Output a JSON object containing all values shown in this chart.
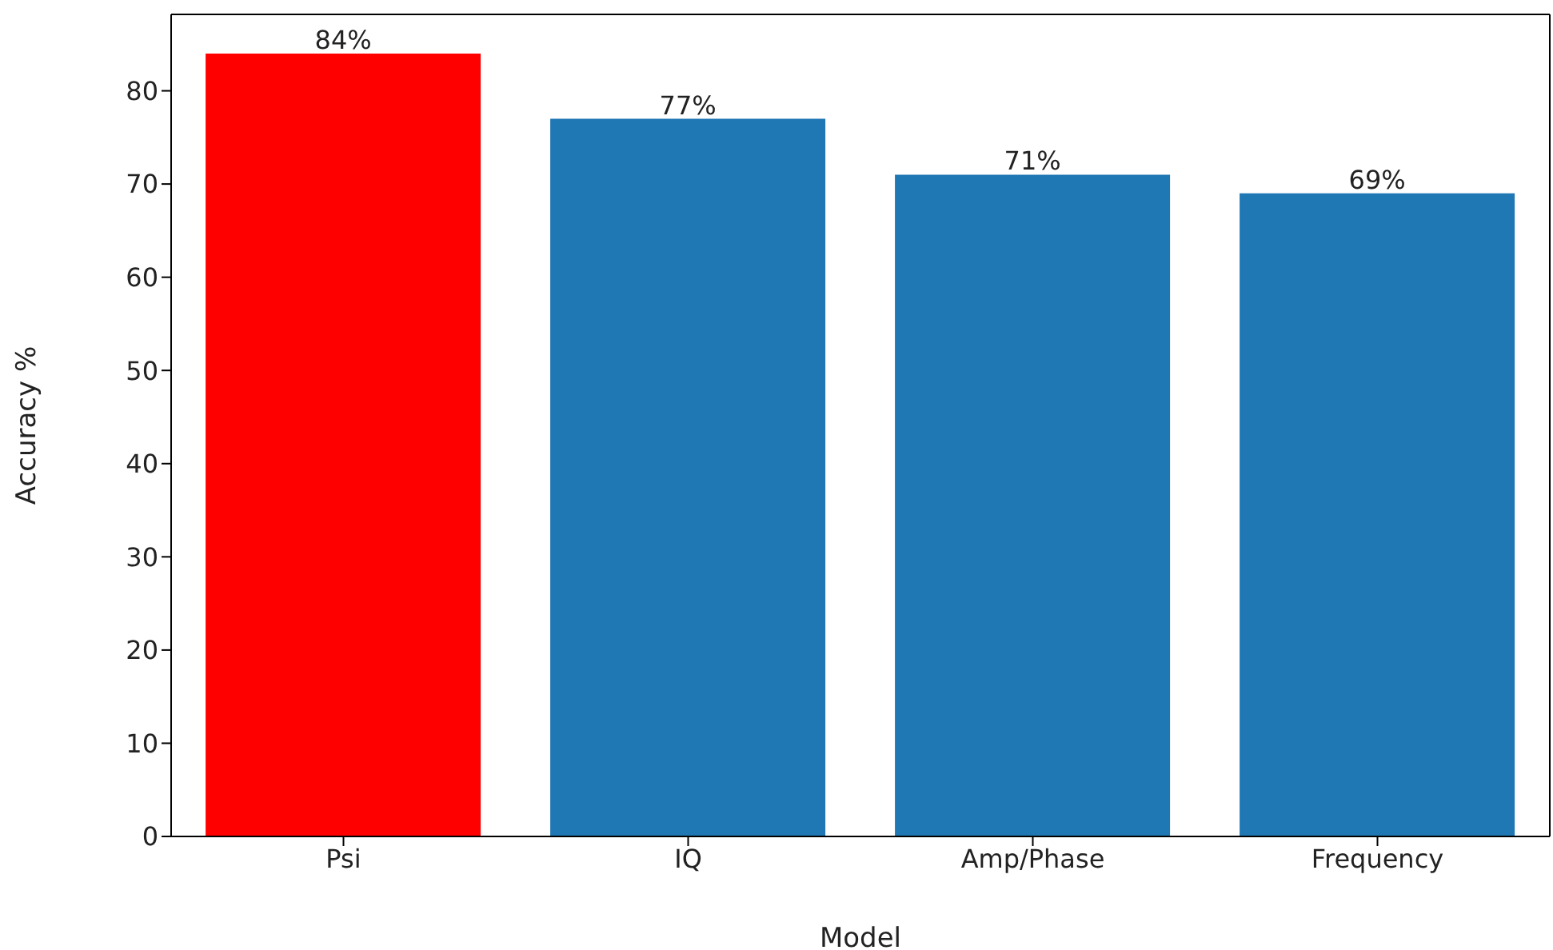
{
  "chart_data": {
    "type": "bar",
    "xlabel": "Model",
    "ylabel": "Accuracy %",
    "categories": [
      "Psi",
      "IQ",
      "Amp/Phase",
      "Frequency"
    ],
    "values": [
      84,
      77,
      71,
      69
    ],
    "colors": [
      "#ff0000",
      "#1f77b4",
      "#1f77b4",
      "#1f77b4"
    ],
    "value_labels": [
      "84%",
      "77%",
      "71%",
      "69%"
    ],
    "ylim": [
      0,
      88.2
    ],
    "yticks": [
      0,
      10,
      20,
      30,
      40,
      50,
      60,
      70,
      80
    ],
    "grid": false
  }
}
